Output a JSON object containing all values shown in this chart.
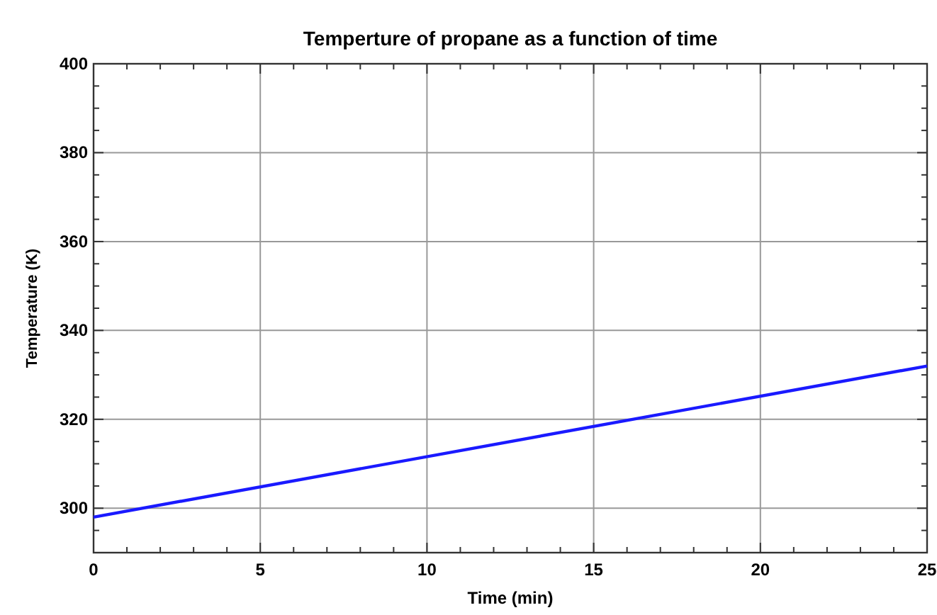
{
  "chart_data": {
    "type": "line",
    "title": "Temperture of propane as a function of time",
    "xlabel": "Time (min)",
    "ylabel": "Temperature (K)",
    "x": [
      0,
      25
    ],
    "series": [
      {
        "color": "#1a1aff",
        "values": [
          298,
          332
        ]
      }
    ],
    "xlim": [
      0,
      25
    ],
    "ylim": [
      290,
      400
    ],
    "xticks": [
      0,
      {
        "value": 1,
        "label": null
      },
      {
        "value": 2,
        "label": null
      },
      {
        "value": 3,
        "label": null
      },
      {
        "value": 4,
        "label": null
      },
      5,
      {
        "value": 6,
        "label": null
      },
      {
        "value": 7,
        "label": null
      },
      {
        "value": 8,
        "label": null
      },
      {
        "value": 9,
        "label": null
      },
      10,
      {
        "value": 11,
        "label": null
      },
      {
        "value": 12,
        "label": null
      },
      {
        "value": 13,
        "label": null
      },
      {
        "value": 14,
        "label": null
      },
      15,
      {
        "value": 16,
        "label": null
      },
      {
        "value": 17,
        "label": null
      },
      {
        "value": 18,
        "label": null
      },
      {
        "value": 19,
        "label": null
      },
      20,
      {
        "value": 21,
        "label": null
      },
      {
        "value": 22,
        "label": null
      },
      {
        "value": 23,
        "label": null
      },
      {
        "value": 24,
        "label": null
      },
      25
    ],
    "yticks": [
      {
        "value": 295,
        "label": null
      },
      300,
      {
        "value": 305,
        "label": null
      },
      {
        "value": 310,
        "label": null
      },
      {
        "value": 315,
        "label": null
      },
      320,
      {
        "value": 325,
        "label": null
      },
      {
        "value": 330,
        "label": null
      },
      {
        "value": 335,
        "label": null
      },
      340,
      {
        "value": 345,
        "label": null
      },
      {
        "value": 350,
        "label": null
      },
      {
        "value": 355,
        "label": null
      },
      360,
      {
        "value": 365,
        "label": null
      },
      {
        "value": 370,
        "label": null
      },
      {
        "value": 375,
        "label": null
      },
      380,
      {
        "value": 385,
        "label": null
      },
      {
        "value": 390,
        "label": null
      },
      {
        "value": 395,
        "label": null
      },
      400
    ],
    "grid": true,
    "line_style": "solid",
    "marker": "none"
  }
}
